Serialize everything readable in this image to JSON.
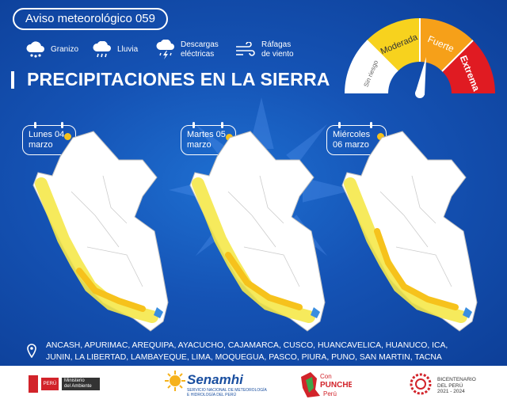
{
  "header": {
    "alert_title": "Aviso meteorológico 059",
    "heading": "PRECIPITACIONES EN LA SIERRA"
  },
  "legend": [
    {
      "icon": "hail-icon",
      "label": "Granizo"
    },
    {
      "icon": "rain-icon",
      "label": "Lluvia"
    },
    {
      "icon": "lightning-icon",
      "label_line1": "Descargas",
      "label_line2": "eléctricas"
    },
    {
      "icon": "wind-icon",
      "label_line1": "Ráfagas",
      "label_line2": "de viento"
    }
  ],
  "gauge": {
    "levels": [
      "Sin riesgo",
      "Moderada",
      "Fuerte",
      "Extrema"
    ],
    "colors": {
      "sin_riesgo": "#ffffff",
      "moderada": "#f7d21e",
      "fuerte": "#f6a019",
      "extrema": "#e01b22"
    }
  },
  "days": [
    {
      "line1": "Lunes 04",
      "line2": "marzo"
    },
    {
      "line1": "Martes 05",
      "line2": "marzo"
    },
    {
      "line1": "Miércoles",
      "line2": "06 marzo"
    }
  ],
  "regions_text": "ANCASH, APURIMAC, AREQUIPA, AYACUCHO, CAJAMARCA, CUSCO, HUANCAVELICA, HUANUCO, ICA, JUNIN, LA LIBERTAD, LAMBAYEQUE, LIMA, MOQUEGUA, PASCO, PIURA, PUNO, SAN MARTIN, TACNA",
  "footer": {
    "peru_label": "PERÚ",
    "ministry_line1": "Ministerio",
    "ministry_line2": "del Ambiente",
    "senamhi_label": "Senamhi",
    "senamhi_sub_line1": "SERVICIO NACIONAL DE METEOROLOGÍA",
    "senamhi_sub_line2": "E HIDROLOGÍA DEL PERÚ",
    "punche_line1": "Con",
    "punche_line2": "PUNCHE",
    "punche_line3": "Perú",
    "bicentenario_line1": "BICENTENARIO",
    "bicentenario_line2": "DEL PERÚ",
    "bicentenario_line3": "2021 - 2024"
  }
}
